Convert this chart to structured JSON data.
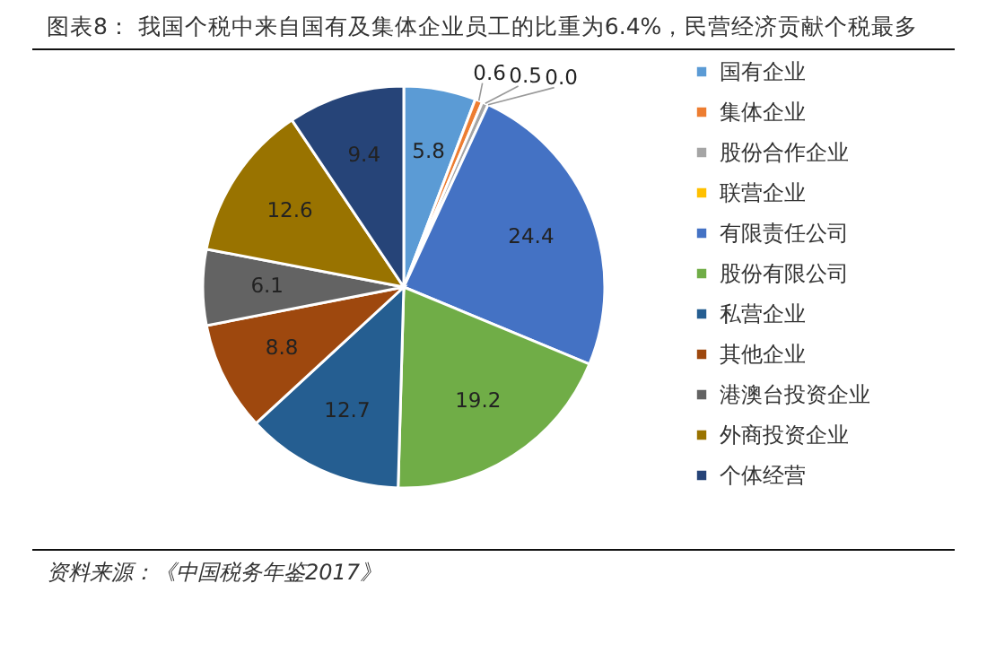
{
  "chart_data": {
    "type": "pie",
    "title": "图表8：  我国个税中来自国有及集体企业员工的比重为6.4%，民营经济贡献个税最多",
    "categories": [
      "国有企业",
      "集体企业",
      "股份合作企业",
      "联营企业",
      "有限责任公司",
      "股份有限公司",
      "私营企业",
      "其他企业",
      "港澳台投资企业",
      "外商投资企业",
      "个体经营"
    ],
    "values": [
      5.8,
      0.6,
      0.5,
      0.0,
      24.4,
      19.2,
      12.7,
      8.8,
      6.1,
      12.6,
      9.4
    ],
    "colors": [
      "#5b9bd5",
      "#ed7d31",
      "#a5a5a5",
      "#ffc000",
      "#4472c4",
      "#70ad47",
      "#255e91",
      "#9e480e",
      "#636363",
      "#997300",
      "#264478"
    ],
    "value_labels": [
      "5.8",
      "0.6",
      "0.5",
      "0.0",
      "24.4",
      "19.2",
      "12.7",
      "8.8",
      "6.1",
      "12.6",
      "9.4"
    ],
    "legend": "right",
    "annotations": [
      "资料来源：《中国税务年鉴2017》"
    ]
  }
}
